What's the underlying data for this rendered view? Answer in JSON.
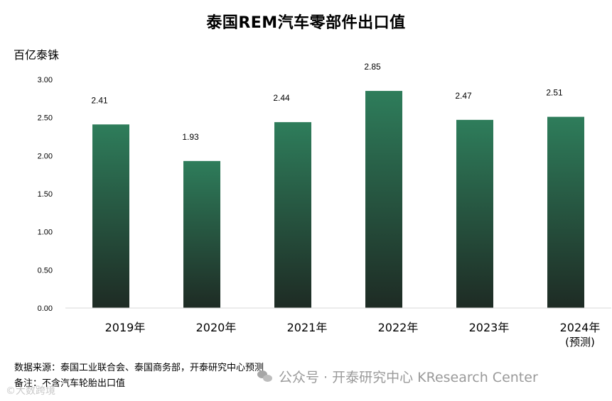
{
  "chart_data": {
    "type": "bar",
    "title": "泰国REM汽车零部件出口值",
    "ylabel": "百亿泰铢",
    "categories": [
      "2019年",
      "2020年",
      "2021年",
      "2022年",
      "2023年",
      "2024年"
    ],
    "category_sublabels": [
      "",
      "",
      "",
      "",
      "",
      "(预测)"
    ],
    "values": [
      2.41,
      1.93,
      2.44,
      2.85,
      2.47,
      2.51
    ],
    "value_labels": [
      "2.41",
      "1.93",
      "2.44",
      "2.85",
      "2.47",
      "2.51"
    ],
    "ylim": [
      0,
      3.0
    ],
    "yticks": [
      "0.00",
      "0.50",
      "1.00",
      "1.50",
      "2.00",
      "2.50",
      "3.00"
    ],
    "grid": false,
    "bar_color_top": "#2e7d5b",
    "bar_color_bottom": "#1e2b24"
  },
  "footer": {
    "source": "数据来源：泰国工业联合会、泰国商务部，开泰研究中心预测",
    "note": "备注：不含汽车轮胎出口值"
  },
  "watermark": {
    "text": "公众号 · 开泰研究中心 KResearch Center",
    "icon": "wechat-icon"
  },
  "corner_mark": "©大数跨境"
}
